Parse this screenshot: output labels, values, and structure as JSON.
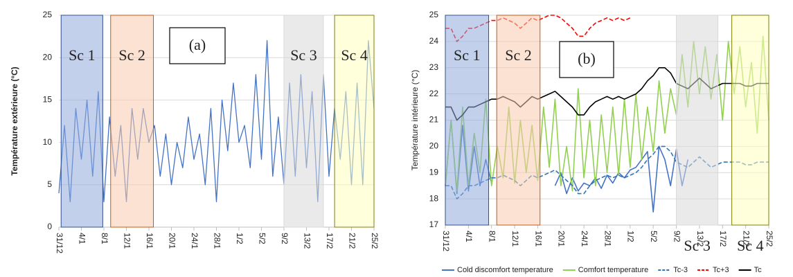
{
  "chart_data": [
    {
      "type": "line",
      "y_label": "Température extérieure (°C)",
      "annotation": "(a)",
      "x": [
        0,
        1,
        2,
        3,
        4,
        5,
        6,
        7,
        8,
        9,
        10,
        11,
        12,
        13,
        14,
        15,
        16,
        17,
        18,
        19,
        20,
        21,
        22,
        23,
        24,
        25,
        26,
        27,
        28,
        29,
        30,
        31,
        32,
        33,
        34,
        35,
        36,
        37,
        38,
        39,
        40,
        41,
        42,
        43,
        44,
        45,
        46,
        47,
        48,
        49,
        50,
        51,
        52,
        53,
        54,
        55,
        56
      ],
      "xlim": [
        0,
        56
      ],
      "xticks": [
        {
          "value": 0,
          "label": "31/12"
        },
        {
          "value": 4,
          "label": "4/1"
        },
        {
          "value": 8,
          "label": "8/1"
        },
        {
          "value": 12,
          "label": "12/1"
        },
        {
          "value": 16,
          "label": "16/1"
        },
        {
          "value": 20,
          "label": "20/1"
        },
        {
          "value": 24,
          "label": "24/1"
        },
        {
          "value": 28,
          "label": "28/1"
        },
        {
          "value": 32,
          "label": "1/2"
        },
        {
          "value": 36,
          "label": "5/2"
        },
        {
          "value": 40,
          "label": "9/2"
        },
        {
          "value": 44,
          "label": "13/2"
        },
        {
          "value": 48,
          "label": "17/2"
        },
        {
          "value": 52,
          "label": "21/2"
        },
        {
          "value": 56,
          "label": "25/2"
        }
      ],
      "ylim": [
        0,
        25
      ],
      "yticks": [
        0,
        5,
        10,
        15,
        20,
        25
      ],
      "grid": true,
      "series": [
        {
          "color": "#4472c4",
          "values": [
            4,
            12,
            3,
            14,
            8,
            15,
            6,
            16,
            3,
            13,
            6,
            12,
            3,
            14,
            8,
            14,
            10,
            12,
            6,
            11,
            5,
            10,
            7,
            13,
            8,
            11,
            5,
            14,
            3,
            15,
            9,
            17,
            10,
            12,
            7,
            18,
            8,
            22,
            6,
            13,
            5,
            17,
            6,
            18,
            7,
            16,
            3,
            18,
            6,
            14,
            8,
            16,
            5,
            17,
            5,
            22,
            14
          ]
        }
      ],
      "regions": [
        {
          "label": "Sc 1",
          "start": 0.4,
          "end": 7.8,
          "color": "#8faadc",
          "border": "#2f4f8f",
          "label_at": "top"
        },
        {
          "label": "Sc 2",
          "start": 9.2,
          "end": 16.8,
          "color": "#f8cbad",
          "border": "#c55a11",
          "label_at": "top"
        },
        {
          "label": "Sc 3",
          "start": 40,
          "end": 47,
          "color": "#d9d9d9",
          "border": "#d9d9d9",
          "label_at": "top"
        },
        {
          "label": "Sc 4",
          "start": 49,
          "end": 56,
          "color": "#ffffc0",
          "border": "#7f7f00",
          "label_at": "top"
        }
      ]
    },
    {
      "type": "line",
      "y_label": "Température intérieure (°C)",
      "annotation": "(b)",
      "x": [
        0,
        1,
        2,
        3,
        4,
        5,
        6,
        7,
        8,
        9,
        10,
        11,
        12,
        13,
        14,
        15,
        16,
        17,
        18,
        19,
        20,
        21,
        22,
        23,
        24,
        25,
        26,
        27,
        28,
        29,
        30,
        31,
        32,
        33,
        34,
        35,
        36,
        37,
        38,
        39,
        40,
        41,
        42,
        43,
        44,
        45,
        46,
        47,
        48,
        49,
        50,
        51,
        52,
        53,
        54,
        55,
        56
      ],
      "xlim": [
        0,
        56
      ],
      "xticks": [
        {
          "value": 0,
          "label": "31/12"
        },
        {
          "value": 4,
          "label": "4/1"
        },
        {
          "value": 8,
          "label": "8/1"
        },
        {
          "value": 12,
          "label": "12/1"
        },
        {
          "value": 16,
          "label": "16/1"
        },
        {
          "value": 20,
          "label": "20/1"
        },
        {
          "value": 24,
          "label": "24/1"
        },
        {
          "value": 28,
          "label": "28/1"
        },
        {
          "value": 32,
          "label": "1/2"
        },
        {
          "value": 36,
          "label": "5/2"
        },
        {
          "value": 40,
          "label": "9/2"
        },
        {
          "value": 44,
          "label": "13/2"
        },
        {
          "value": 48,
          "label": "17/2"
        },
        {
          "value": 52,
          "label": "21/2"
        },
        {
          "value": 56,
          "label": "25/2"
        }
      ],
      "ylim": [
        17,
        25
      ],
      "yticks": [
        17,
        18,
        19,
        20,
        21,
        22,
        23,
        24,
        25
      ],
      "grid": true,
      "legend": "bottom",
      "series": [
        {
          "name": "Cold discomfort temperature",
          "color": "#4472c4",
          "dash": false,
          "values": [
            18.5,
            21,
            18.2,
            20.8,
            18.3,
            20,
            18.5,
            19.5,
            18.6,
            null,
            null,
            null,
            null,
            null,
            null,
            null,
            null,
            null,
            null,
            18.5,
            19,
            18.2,
            18.8,
            18.3,
            18.6,
            18.5,
            18.8,
            18.4,
            18.9,
            18.6,
            19,
            18.8,
            19.1,
            19.2,
            19.5,
            19.8,
            17.5,
            20,
            19.5,
            18.5,
            19.9,
            18.5,
            19.5,
            null,
            null,
            null,
            null,
            null,
            null,
            null,
            null,
            null,
            null,
            null,
            null,
            null,
            null
          ]
        },
        {
          "name": "Comfort temperature",
          "color": "#92d050",
          "dash": false,
          "values": [
            18.5,
            21,
            18.3,
            21.5,
            18.5,
            20.5,
            19,
            21.8,
            18.5,
            20,
            18.8,
            21.5,
            18.6,
            21,
            19,
            20.8,
            18.7,
            21.5,
            19.2,
            21.8,
            18.5,
            20,
            18.3,
            22.2,
            18.8,
            21,
            18.5,
            21.2,
            19,
            21.5,
            18.9,
            21.8,
            19.2,
            22,
            19.5,
            21.5,
            19.8,
            22.5,
            20.5,
            22.2,
            21.2,
            23.5,
            21.5,
            24,
            22,
            23.8,
            21.8,
            23.5,
            21,
            24,
            22,
            23.8,
            21.5,
            23.2,
            20.5,
            24.2,
            21
          ]
        },
        {
          "name": "Tc-3",
          "color": "#2e75b6",
          "dash": true,
          "values": [
            18.5,
            18.5,
            18,
            18.2,
            18.5,
            18.5,
            18.6,
            18.7,
            18.8,
            18.8,
            18.9,
            18.8,
            18.7,
            18.5,
            18.7,
            18.9,
            18.8,
            18.9,
            19,
            19.1,
            18.9,
            18.7,
            18.5,
            18.2,
            18.2,
            18.5,
            18.7,
            18.8,
            18.9,
            18.8,
            18.9,
            18.8,
            18.9,
            19,
            19.2,
            19.5,
            19.7,
            20,
            20,
            19.8,
            19.4,
            19.3,
            19.2,
            19.4,
            19.6,
            19.4,
            19.2,
            19.3,
            19.4,
            19.4,
            19.4,
            19.4,
            19.3,
            19.3,
            19.4,
            19.4,
            19.4
          ]
        },
        {
          "name": "Tc+3",
          "color": "#ff0000",
          "dash": true,
          "values": [
            24.5,
            24.5,
            24,
            24.2,
            24.5,
            24.5,
            24.6,
            24.7,
            24.8,
            24.8,
            24.9,
            24.8,
            24.7,
            24.5,
            24.7,
            24.9,
            24.8,
            24.9,
            25,
            25,
            24.9,
            24.7,
            24.5,
            24.2,
            24.2,
            24.5,
            24.7,
            24.8,
            24.9,
            24.8,
            24.9,
            24.8,
            24.9,
            null,
            null,
            null,
            null,
            null,
            null,
            null,
            null,
            null,
            null,
            null,
            null,
            null,
            null,
            null,
            null,
            null,
            null,
            null,
            null,
            null,
            null,
            null,
            null
          ]
        },
        {
          "name": "Tc",
          "color": "#000000",
          "dash": false,
          "values": [
            21.5,
            21.5,
            21,
            21.2,
            21.5,
            21.5,
            21.6,
            21.7,
            21.8,
            21.8,
            21.9,
            21.8,
            21.7,
            21.5,
            21.7,
            21.9,
            21.8,
            21.9,
            22,
            22.1,
            21.9,
            21.7,
            21.5,
            21.2,
            21.2,
            21.5,
            21.7,
            21.8,
            21.9,
            21.8,
            21.9,
            21.8,
            21.9,
            22,
            22.2,
            22.5,
            22.7,
            23,
            23,
            22.8,
            22.4,
            22.3,
            22.2,
            22.4,
            22.6,
            22.4,
            22.2,
            22.3,
            22.4,
            22.4,
            22.4,
            22.4,
            22.3,
            22.3,
            22.4,
            22.4,
            22.4
          ]
        }
      ],
      "regions": [
        {
          "label": "Sc 1",
          "start": 0,
          "end": 7.5,
          "color": "#8faadc",
          "border": "#2f4f8f",
          "label_at": "top"
        },
        {
          "label": "Sc 2",
          "start": 8.9,
          "end": 16.4,
          "color": "#f8cbad",
          "border": "#c55a11",
          "label_at": "top"
        },
        {
          "label": "Sc 3",
          "start": 40,
          "end": 47.2,
          "color": "#d9d9d9",
          "border": "#d9d9d9",
          "label_at": "bottom"
        },
        {
          "label": "Sc 4",
          "start": 49.6,
          "end": 56,
          "color": "#ffffc0",
          "border": "#7f7f00",
          "label_at": "bottom"
        }
      ]
    }
  ]
}
